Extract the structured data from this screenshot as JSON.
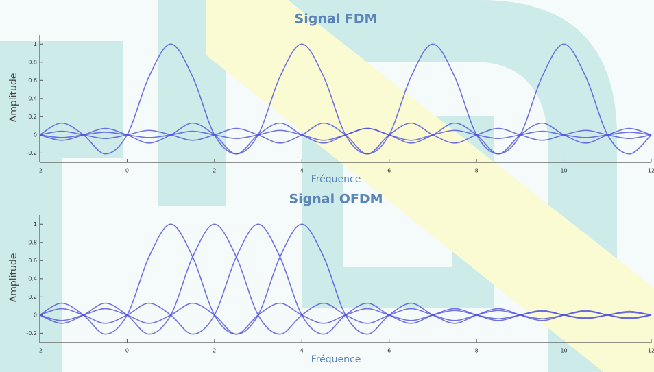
{
  "chart_data": [
    {
      "type": "line",
      "title": "Signal FDM",
      "x_label": "Fréquence",
      "y_label": "Amplitude",
      "x": [
        -2,
        -1.5,
        -1,
        -0.5,
        0,
        0.5,
        1,
        1.5,
        2,
        2.5,
        3,
        3.5,
        4,
        4.5,
        5,
        5.5,
        6,
        6.5,
        7,
        7.5,
        8,
        8.5,
        9,
        9.5,
        10,
        10.5,
        11,
        11.5,
        12
      ],
      "series": [
        {
          "color": "#4f4fe0",
          "values": [
            0,
            0.13,
            0,
            -0.21,
            0,
            0.64,
            1,
            0.64,
            0,
            -0.21,
            0,
            0.13,
            0,
            -0.09,
            0,
            0.07,
            0,
            -0.06,
            0,
            0.05,
            0,
            -0.04,
            0,
            0.04,
            0,
            -0.03,
            0,
            0.03,
            0
          ]
        },
        {
          "color": "#4f4fe0",
          "values": [
            0,
            -0.06,
            0,
            0.07,
            0,
            -0.09,
            0,
            0.13,
            0,
            -0.21,
            0,
            0.64,
            1,
            0.64,
            0,
            -0.21,
            0,
            0.13,
            0,
            -0.09,
            0,
            0.07,
            0,
            -0.06,
            0,
            0.05,
            0,
            -0.04,
            0
          ]
        },
        {
          "color": "#4f4fe0",
          "values": [
            0,
            0.04,
            0,
            -0.04,
            0,
            0.05,
            0,
            -0.06,
            0,
            0.07,
            0,
            -0.09,
            0,
            0.13,
            0,
            -0.21,
            0,
            0.64,
            1,
            0.64,
            0,
            -0.21,
            0,
            0.13,
            0,
            -0.09,
            0,
            0.07,
            0
          ]
        },
        {
          "color": "#4f4fe0",
          "values": [
            0,
            -0.03,
            0,
            0.03,
            0,
            -0.03,
            0,
            0.04,
            0,
            -0.04,
            0,
            0.05,
            0,
            -0.06,
            0,
            0.07,
            0,
            -0.09,
            0,
            0.13,
            0,
            -0.21,
            0,
            0.64,
            1,
            0.64,
            0,
            -0.21,
            0
          ]
        }
      ],
      "xlim": [
        -2,
        12
      ],
      "xticks": [
        -2,
        0,
        2,
        4,
        6,
        8,
        10,
        12
      ],
      "ylim": [
        -0.28,
        1.1
      ],
      "yticks": [
        -0.2,
        0,
        0.2,
        0.4,
        0.6,
        0.8,
        1
      ]
    },
    {
      "type": "line",
      "title": "Signal OFDM",
      "x_label": "Fréquence",
      "y_label": "Amplitude",
      "x": [
        -2,
        -1.5,
        -1,
        -0.5,
        0,
        0.5,
        1,
        1.5,
        2,
        2.5,
        3,
        3.5,
        4,
        4.5,
        5,
        5.5,
        6,
        6.5,
        7,
        7.5,
        8,
        8.5,
        9,
        9.5,
        10,
        10.5,
        11,
        11.5,
        12
      ],
      "series": [
        {
          "color": "#4f4fe0",
          "values": [
            0,
            0.13,
            0,
            -0.21,
            0,
            0.64,
            1,
            0.64,
            0,
            -0.21,
            0,
            0.13,
            0,
            -0.09,
            0,
            0.07,
            0,
            -0.06,
            0,
            0.05,
            0,
            -0.04,
            0,
            0.04,
            0,
            -0.03,
            0,
            0.03,
            0
          ]
        },
        {
          "color": "#4f4fe0",
          "values": [
            0,
            -0.09,
            0,
            0.13,
            0,
            -0.21,
            0,
            0.64,
            1,
            0.64,
            0,
            -0.21,
            0,
            0.13,
            0,
            -0.09,
            0,
            0.07,
            0,
            -0.06,
            0,
            0.05,
            0,
            -0.04,
            0,
            0.04,
            0,
            -0.03,
            0
          ]
        },
        {
          "color": "#4f4fe0",
          "values": [
            0,
            0.07,
            0,
            -0.09,
            0,
            0.13,
            0,
            -0.21,
            0,
            0.64,
            1,
            0.64,
            0,
            -0.21,
            0,
            0.13,
            0,
            -0.09,
            0,
            0.07,
            0,
            -0.06,
            0,
            0.05,
            0,
            -0.04,
            0,
            0.04,
            0
          ]
        },
        {
          "color": "#4f4fe0",
          "values": [
            0,
            -0.06,
            0,
            0.07,
            0,
            -0.09,
            0,
            0.13,
            0,
            -0.21,
            0,
            0.64,
            1,
            0.64,
            0,
            -0.21,
            0,
            0.13,
            0,
            -0.09,
            0,
            0.07,
            0,
            -0.06,
            0,
            0.05,
            0,
            -0.04,
            0
          ]
        }
      ],
      "xlim": [
        -2,
        12
      ],
      "xticks": [
        -2,
        0,
        2,
        4,
        6,
        8,
        10,
        12
      ],
      "ylim": [
        -0.28,
        1.1
      ],
      "yticks": [
        -0.2,
        0,
        0.2,
        0.4,
        0.6,
        0.8,
        1
      ]
    }
  ]
}
